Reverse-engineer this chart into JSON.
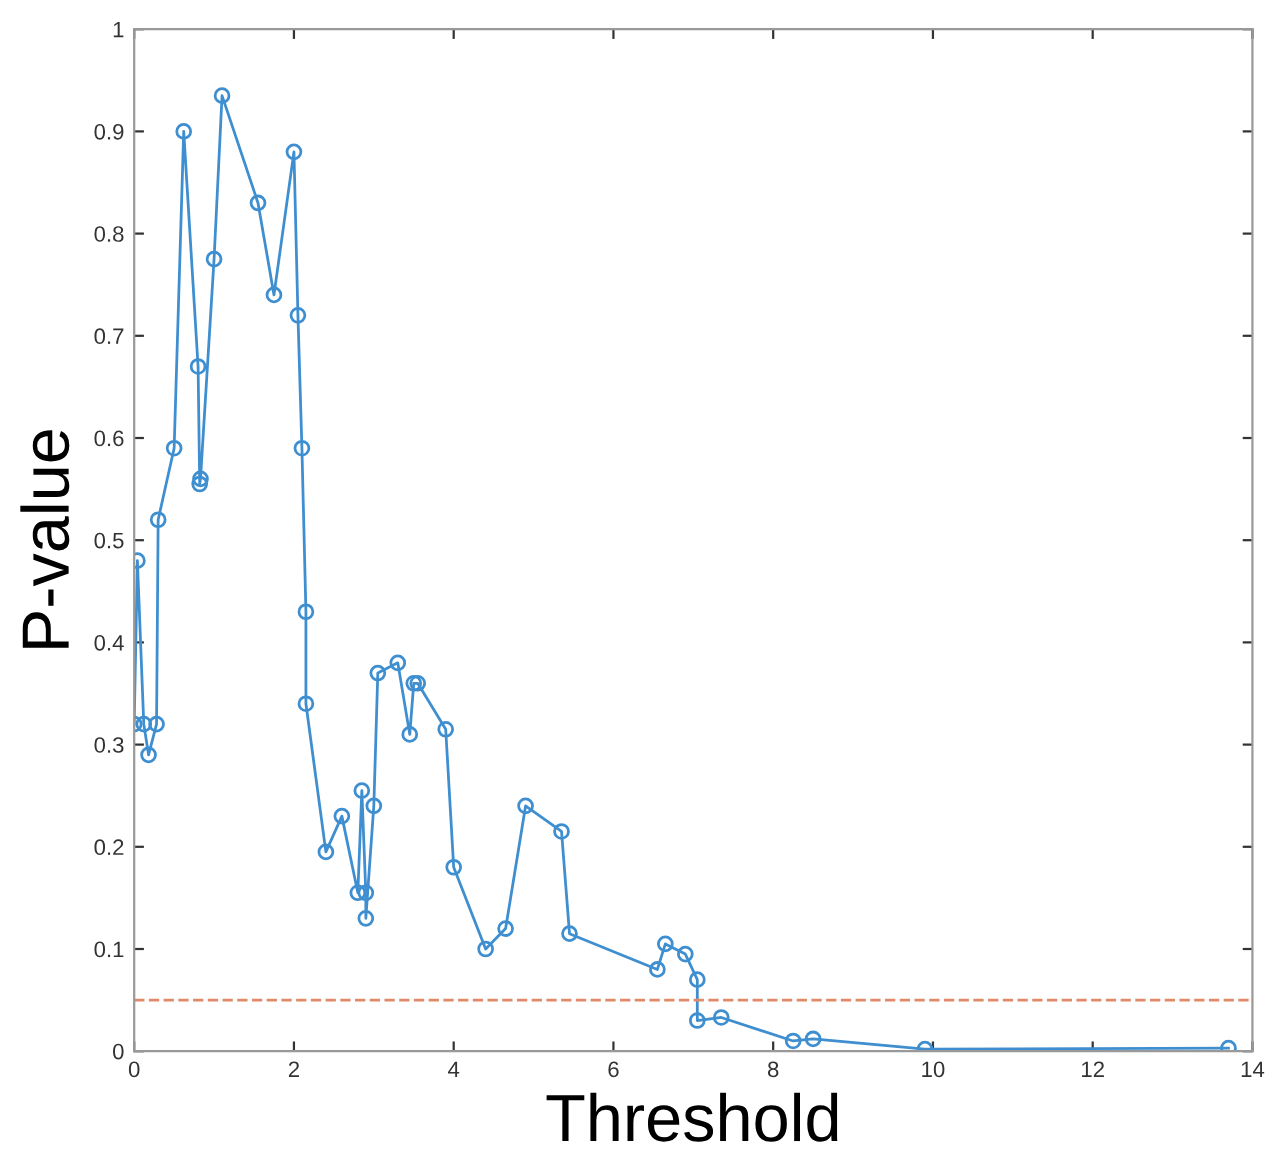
{
  "chart_data": {
    "type": "line",
    "xlabel": "Threshold",
    "ylabel": "P-value",
    "x": [
      0.0,
      0.04,
      0.12,
      0.18,
      0.28,
      0.3,
      0.5,
      0.62,
      0.8,
      0.82,
      0.83,
      1.0,
      1.1,
      1.55,
      1.75,
      2.0,
      2.05,
      2.1,
      2.15,
      2.15,
      2.4,
      2.6,
      2.8,
      2.85,
      2.9,
      2.9,
      3.0,
      3.05,
      3.3,
      3.45,
      3.5,
      3.55,
      3.9,
      4.0,
      4.4,
      4.65,
      4.9,
      5.35,
      5.45,
      6.55,
      6.65,
      6.9,
      7.05,
      7.05,
      7.35,
      8.25,
      8.5,
      9.9,
      13.7
    ],
    "series": [
      {
        "color": "#3f8fd0",
        "values": [
          0.32,
          0.48,
          0.32,
          0.29,
          0.32,
          0.52,
          0.59,
          0.9,
          0.67,
          0.555,
          0.56,
          0.775,
          0.935,
          0.83,
          0.74,
          0.88,
          0.72,
          0.59,
          0.43,
          0.34,
          0.195,
          0.23,
          0.155,
          0.255,
          0.155,
          0.13,
          0.24,
          0.37,
          0.38,
          0.31,
          0.36,
          0.36,
          0.315,
          0.18,
          0.1,
          0.12,
          0.24,
          0.215,
          0.115,
          0.08,
          0.105,
          0.095,
          0.07,
          0.03,
          0.033,
          0.01,
          0.012,
          0.002,
          0.003
        ]
      }
    ],
    "marker": "circle",
    "line_style": "solid",
    "xlim": [
      0,
      14
    ],
    "xticks": [
      0,
      2,
      4,
      6,
      8,
      10,
      12,
      14
    ],
    "ylim": [
      0,
      1
    ],
    "yticks": [
      0,
      0.1,
      0.2,
      0.3,
      0.4,
      0.5,
      0.6,
      0.7,
      0.8,
      0.9,
      1
    ],
    "ref_lines": [
      {
        "axis": "y",
        "value": 0.05,
        "color": "#e08a6a",
        "line_style": "dashed"
      }
    ],
    "grid": false,
    "legend": false
  }
}
